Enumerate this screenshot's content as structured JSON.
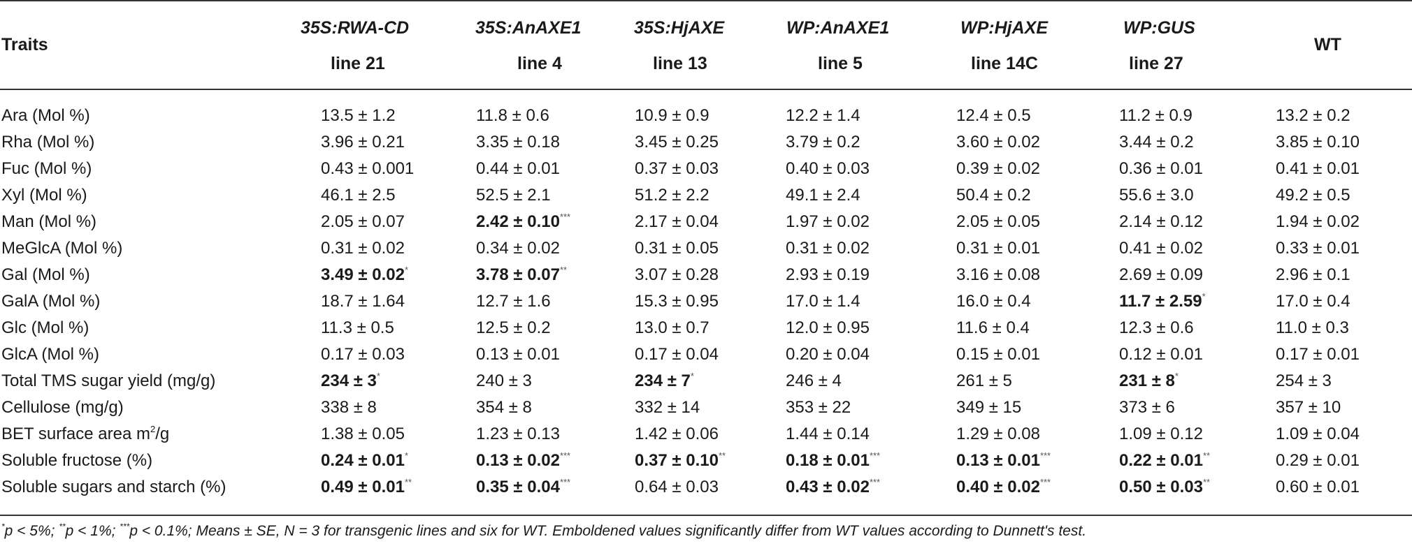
{
  "table": {
    "header": {
      "traits": "Traits",
      "columns": [
        {
          "construct": "35S:RWA-CD",
          "line": "line 21"
        },
        {
          "construct": "35S:AnAXE1",
          "line": "line 4"
        },
        {
          "construct": "35S:HjAXE",
          "line": "line 13"
        },
        {
          "construct": "WP:AnAXE1",
          "line": "line 5"
        },
        {
          "construct": "WP:HjAXE",
          "line": "line 14C"
        },
        {
          "construct": "WP:GUS",
          "line": "line 27"
        }
      ],
      "wt": "WT"
    },
    "rows": [
      {
        "trait": "Ara (Mol %)",
        "values": [
          {
            "v": "13.5 ± 1.2",
            "b": false,
            "s": ""
          },
          {
            "v": "11.8 ± 0.6",
            "b": false,
            "s": ""
          },
          {
            "v": "10.9 ± 0.9",
            "b": false,
            "s": ""
          },
          {
            "v": "12.2 ± 1.4",
            "b": false,
            "s": ""
          },
          {
            "v": "12.4 ± 0.5",
            "b": false,
            "s": ""
          },
          {
            "v": "11.2 ± 0.9",
            "b": false,
            "s": ""
          },
          {
            "v": "13.2 ± 0.2",
            "b": false,
            "s": ""
          }
        ]
      },
      {
        "trait": "Rha (Mol %)",
        "values": [
          {
            "v": "3.96 ± 0.21",
            "b": false,
            "s": ""
          },
          {
            "v": "3.35 ± 0.18",
            "b": false,
            "s": ""
          },
          {
            "v": "3.45 ± 0.25",
            "b": false,
            "s": ""
          },
          {
            "v": "3.79 ± 0.2",
            "b": false,
            "s": ""
          },
          {
            "v": "3.60 ± 0.02",
            "b": false,
            "s": ""
          },
          {
            "v": "3.44 ± 0.2",
            "b": false,
            "s": ""
          },
          {
            "v": "3.85 ± 0.10",
            "b": false,
            "s": ""
          }
        ]
      },
      {
        "trait": "Fuc (Mol %)",
        "values": [
          {
            "v": "0.43 ± 0.001",
            "b": false,
            "s": ""
          },
          {
            "v": "0.44 ± 0.01",
            "b": false,
            "s": ""
          },
          {
            "v": "0.37 ± 0.03",
            "b": false,
            "s": ""
          },
          {
            "v": "0.40 ± 0.03",
            "b": false,
            "s": ""
          },
          {
            "v": "0.39 ± 0.02",
            "b": false,
            "s": ""
          },
          {
            "v": "0.36 ± 0.01",
            "b": false,
            "s": ""
          },
          {
            "v": "0.41 ± 0.01",
            "b": false,
            "s": ""
          }
        ]
      },
      {
        "trait": "Xyl (Mol %)",
        "values": [
          {
            "v": "46.1 ± 2.5",
            "b": false,
            "s": ""
          },
          {
            "v": "52.5 ± 2.1",
            "b": false,
            "s": ""
          },
          {
            "v": "51.2 ± 2.2",
            "b": false,
            "s": ""
          },
          {
            "v": "49.1 ± 2.4",
            "b": false,
            "s": ""
          },
          {
            "v": "50.4 ± 0.2",
            "b": false,
            "s": ""
          },
          {
            "v": "55.6 ± 3.0",
            "b": false,
            "s": ""
          },
          {
            "v": "49.2 ± 0.5",
            "b": false,
            "s": ""
          }
        ]
      },
      {
        "trait": "Man (Mol %)",
        "values": [
          {
            "v": "2.05 ± 0.07",
            "b": false,
            "s": ""
          },
          {
            "v": "2.42 ± 0.10",
            "b": true,
            "s": "***"
          },
          {
            "v": "2.17 ± 0.04",
            "b": false,
            "s": ""
          },
          {
            "v": "1.97 ± 0.02",
            "b": false,
            "s": ""
          },
          {
            "v": "2.05 ± 0.05",
            "b": false,
            "s": ""
          },
          {
            "v": "2.14 ± 0.12",
            "b": false,
            "s": ""
          },
          {
            "v": "1.94 ± 0.02",
            "b": false,
            "s": ""
          }
        ]
      },
      {
        "trait": "MeGlcA (Mol %)",
        "values": [
          {
            "v": "0.31 ± 0.02",
            "b": false,
            "s": ""
          },
          {
            "v": "0.34 ± 0.02",
            "b": false,
            "s": ""
          },
          {
            "v": "0.31 ± 0.05",
            "b": false,
            "s": ""
          },
          {
            "v": "0.31 ± 0.02",
            "b": false,
            "s": ""
          },
          {
            "v": "0.31 ± 0.01",
            "b": false,
            "s": ""
          },
          {
            "v": "0.41 ± 0.02",
            "b": false,
            "s": ""
          },
          {
            "v": "0.33 ± 0.01",
            "b": false,
            "s": ""
          }
        ]
      },
      {
        "trait": "Gal (Mol %)",
        "values": [
          {
            "v": "3.49 ± 0.02",
            "b": true,
            "s": "*"
          },
          {
            "v": "3.78 ± 0.07",
            "b": true,
            "s": "**"
          },
          {
            "v": "3.07 ± 0.28",
            "b": false,
            "s": ""
          },
          {
            "v": "2.93 ± 0.19",
            "b": false,
            "s": ""
          },
          {
            "v": "3.16 ± 0.08",
            "b": false,
            "s": ""
          },
          {
            "v": "2.69 ± 0.09",
            "b": false,
            "s": ""
          },
          {
            "v": "2.96 ± 0.1",
            "b": false,
            "s": ""
          }
        ]
      },
      {
        "trait": "GalA (Mol %)",
        "values": [
          {
            "v": "18.7 ± 1.64",
            "b": false,
            "s": ""
          },
          {
            "v": "12.7 ± 1.6",
            "b": false,
            "s": ""
          },
          {
            "v": "15.3 ± 0.95",
            "b": false,
            "s": ""
          },
          {
            "v": "17.0 ± 1.4",
            "b": false,
            "s": ""
          },
          {
            "v": "16.0 ± 0.4",
            "b": false,
            "s": ""
          },
          {
            "v": "11.7 ± 2.59",
            "b": true,
            "s": "*"
          },
          {
            "v": "17.0 ± 0.4",
            "b": false,
            "s": ""
          }
        ]
      },
      {
        "trait": "Glc (Mol %)",
        "values": [
          {
            "v": "11.3 ± 0.5",
            "b": false,
            "s": ""
          },
          {
            "v": "12.5 ± 0.2",
            "b": false,
            "s": ""
          },
          {
            "v": "13.0 ± 0.7",
            "b": false,
            "s": ""
          },
          {
            "v": "12.0 ± 0.95",
            "b": false,
            "s": ""
          },
          {
            "v": "11.6 ± 0.4",
            "b": false,
            "s": ""
          },
          {
            "v": "12.3 ± 0.6",
            "b": false,
            "s": ""
          },
          {
            "v": "11.0 ± 0.3",
            "b": false,
            "s": ""
          }
        ]
      },
      {
        "trait": "GlcA (Mol %)",
        "values": [
          {
            "v": "0.17 ± 0.03",
            "b": false,
            "s": ""
          },
          {
            "v": "0.13 ± 0.01",
            "b": false,
            "s": ""
          },
          {
            "v": "0.17 ± 0.04",
            "b": false,
            "s": ""
          },
          {
            "v": "0.20 ± 0.04",
            "b": false,
            "s": ""
          },
          {
            "v": "0.15 ± 0.01",
            "b": false,
            "s": ""
          },
          {
            "v": "0.12 ± 0.01",
            "b": false,
            "s": ""
          },
          {
            "v": "0.17 ± 0.01",
            "b": false,
            "s": ""
          }
        ]
      },
      {
        "trait": "Total TMS sugar yield (mg/g)",
        "values": [
          {
            "v": "234 ± 3",
            "b": true,
            "s": "*"
          },
          {
            "v": "240 ± 3",
            "b": false,
            "s": ""
          },
          {
            "v": "234 ± 7",
            "b": true,
            "s": "*"
          },
          {
            "v": "246 ± 4",
            "b": false,
            "s": ""
          },
          {
            "v": "261 ± 5",
            "b": false,
            "s": ""
          },
          {
            "v": "231 ± 8",
            "b": true,
            "s": "*"
          },
          {
            "v": "254 ± 3",
            "b": false,
            "s": ""
          }
        ]
      },
      {
        "trait": "Cellulose (mg/g)",
        "values": [
          {
            "v": "338 ± 8",
            "b": false,
            "s": ""
          },
          {
            "v": "354 ± 8",
            "b": false,
            "s": ""
          },
          {
            "v": "332 ± 14",
            "b": false,
            "s": ""
          },
          {
            "v": "353 ± 22",
            "b": false,
            "s": ""
          },
          {
            "v": "349 ± 15",
            "b": false,
            "s": ""
          },
          {
            "v": "373 ± 6",
            "b": false,
            "s": ""
          },
          {
            "v": "357 ± 10",
            "b": false,
            "s": ""
          }
        ]
      },
      {
        "trait": "BET surface area m",
        "trait_sup": "2",
        "trait_tail": "/g",
        "values": [
          {
            "v": "1.38 ± 0.05",
            "b": false,
            "s": ""
          },
          {
            "v": "1.23 ± 0.13",
            "b": false,
            "s": ""
          },
          {
            "v": "1.42 ± 0.06",
            "b": false,
            "s": ""
          },
          {
            "v": "1.44 ± 0.14",
            "b": false,
            "s": ""
          },
          {
            "v": "1.29 ± 0.08",
            "b": false,
            "s": ""
          },
          {
            "v": "1.09 ± 0.12",
            "b": false,
            "s": ""
          },
          {
            "v": "1.09 ± 0.04",
            "b": false,
            "s": ""
          }
        ]
      },
      {
        "trait": "Soluble fructose (%)",
        "values": [
          {
            "v": "0.24 ± 0.01",
            "b": true,
            "s": "*"
          },
          {
            "v": "0.13 ± 0.02",
            "b": true,
            "s": "***"
          },
          {
            "v": "0.37 ± 0.10",
            "b": true,
            "s": "**"
          },
          {
            "v": "0.18 ± 0.01",
            "b": true,
            "s": "***"
          },
          {
            "v": "0.13 ± 0.01",
            "b": true,
            "s": "***"
          },
          {
            "v": "0.22 ± 0.01",
            "b": true,
            "s": "**"
          },
          {
            "v": "0.29 ± 0.01",
            "b": false,
            "s": ""
          }
        ]
      },
      {
        "trait": "Soluble sugars and starch (%)",
        "values": [
          {
            "v": "0.49 ± 0.01",
            "b": true,
            "s": "**"
          },
          {
            "v": "0.35 ± 0.04",
            "b": true,
            "s": "***"
          },
          {
            "v": "0.64 ± 0.03",
            "b": false,
            "s": ""
          },
          {
            "v": "0.43 ± 0.02",
            "b": true,
            "s": "***"
          },
          {
            "v": "0.40 ± 0.02",
            "b": true,
            "s": "***"
          },
          {
            "v": "0.50 ± 0.03",
            "b": true,
            "s": "**"
          },
          {
            "v": "0.60 ± 0.01",
            "b": false,
            "s": ""
          }
        ]
      }
    ]
  },
  "footnote": {
    "s1": "*",
    "t1": "p < 5%; ",
    "s2": "**",
    "t2": "p < 1%; ",
    "s3": "***",
    "t3": "p < 0.1%; Means ± SE, N = 3 for transgenic lines and six for WT. Emboldened values significantly differ from WT values according to Dunnett's test."
  }
}
